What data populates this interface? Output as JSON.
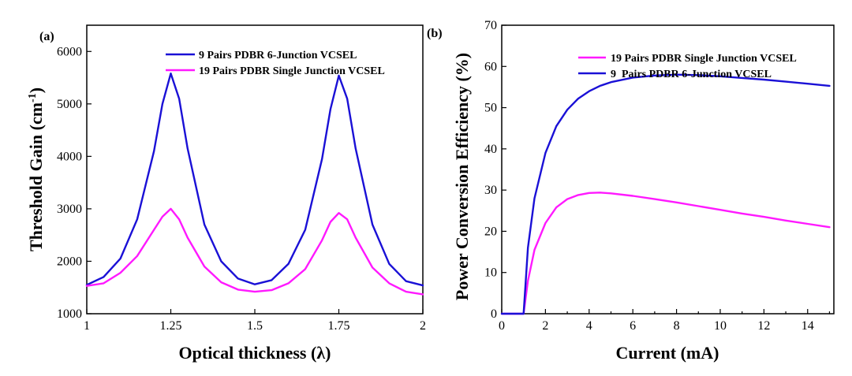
{
  "chart_data": [
    {
      "type": "line",
      "panel_label": "(a)",
      "xlabel": "Optical thickness (λ)",
      "ylabel_main": "Threshold Gain (cm",
      "ylabel_sup": "-1",
      "ylabel_end": ")",
      "xlim": [
        1,
        2
      ],
      "ylim": [
        1000,
        6500
      ],
      "xticks": [
        1,
        1.25,
        1.5,
        1.75,
        2
      ],
      "xtick_labels": [
        "1",
        "1.25",
        "1.5",
        "1.75",
        "2"
      ],
      "yticks": [
        1000,
        2000,
        3000,
        4000,
        5000,
        6000
      ],
      "ytick_labels": [
        "1000",
        "2000",
        "3000",
        "4000",
        "5000",
        "6000"
      ],
      "legend_position": "top-right",
      "series": [
        {
          "name": "9 Pairs PDBR 6-Junction VCSEL",
          "color": "#1a10d6",
          "x": [
            1.0,
            1.05,
            1.1,
            1.15,
            1.2,
            1.225,
            1.25,
            1.275,
            1.3,
            1.35,
            1.4,
            1.45,
            1.5,
            1.55,
            1.6,
            1.65,
            1.7,
            1.725,
            1.75,
            1.775,
            1.8,
            1.85,
            1.9,
            1.95,
            2.0
          ],
          "y": [
            1550,
            1700,
            2050,
            2800,
            4100,
            5000,
            5580,
            5100,
            4150,
            2700,
            2000,
            1670,
            1560,
            1640,
            1950,
            2600,
            3950,
            4900,
            5540,
            5100,
            4150,
            2700,
            1950,
            1620,
            1540
          ]
        },
        {
          "name": "19 Pairs PDBR Single Junction VCSEL",
          "color": "#ff19ff",
          "x": [
            1.0,
            1.05,
            1.1,
            1.15,
            1.2,
            1.225,
            1.25,
            1.275,
            1.3,
            1.35,
            1.4,
            1.45,
            1.5,
            1.55,
            1.6,
            1.65,
            1.7,
            1.725,
            1.75,
            1.775,
            1.8,
            1.85,
            1.9,
            1.95,
            2.0
          ],
          "y": [
            1530,
            1580,
            1780,
            2100,
            2600,
            2850,
            3000,
            2800,
            2450,
            1900,
            1600,
            1460,
            1420,
            1450,
            1580,
            1850,
            2400,
            2750,
            2920,
            2800,
            2450,
            1880,
            1580,
            1420,
            1370
          ]
        }
      ]
    },
    {
      "type": "line",
      "panel_label": "(b)",
      "xlabel": "Current (mA)",
      "ylabel": "Power Conversion Efficiency (%)",
      "xlim": [
        0,
        15.2
      ],
      "ylim": [
        0,
        70
      ],
      "xticks": [
        0,
        2,
        4,
        6,
        8,
        10,
        12,
        14
      ],
      "xtick_labels": [
        "0",
        "2",
        "4",
        "6",
        "8",
        "10",
        "12",
        "14"
      ],
      "yticks": [
        0,
        10,
        20,
        30,
        40,
        50,
        60,
        70
      ],
      "ytick_labels": [
        "0",
        "10",
        "20",
        "30",
        "40",
        "50",
        "60",
        "70"
      ],
      "legend_position": "top-right",
      "series": [
        {
          "name": "19 Pairs PDBR Single Junction VCSEL",
          "color": "#ff19ff",
          "x": [
            0,
            1.0,
            1.2,
            1.5,
            2.0,
            2.5,
            3.0,
            3.5,
            4.0,
            4.5,
            5.0,
            6.0,
            7.0,
            8.0,
            9.0,
            10.0,
            11.0,
            12.0,
            13.0,
            14.0,
            15.0
          ],
          "y": [
            0,
            0,
            8,
            15.5,
            22,
            25.8,
            27.8,
            28.8,
            29.3,
            29.4,
            29.2,
            28.6,
            27.8,
            27.0,
            26.1,
            25.2,
            24.3,
            23.5,
            22.6,
            21.8,
            21.0
          ]
        },
        {
          "name": "9  Pairs PDBR 6-Junction VCSEL",
          "color": "#1a10d6",
          "x": [
            0,
            1.0,
            1.2,
            1.5,
            2.0,
            2.5,
            3.0,
            3.5,
            4.0,
            4.5,
            5.0,
            6.0,
            7.0,
            8.0,
            9.0,
            10.0,
            11.0,
            12.0,
            13.0,
            14.0,
            15.0
          ],
          "y": [
            0,
            0,
            16,
            28,
            39,
            45.5,
            49.5,
            52.2,
            54.0,
            55.3,
            56.2,
            57.3,
            57.8,
            58.0,
            57.9,
            57.6,
            57.2,
            56.8,
            56.3,
            55.8,
            55.3
          ]
        }
      ]
    }
  ]
}
